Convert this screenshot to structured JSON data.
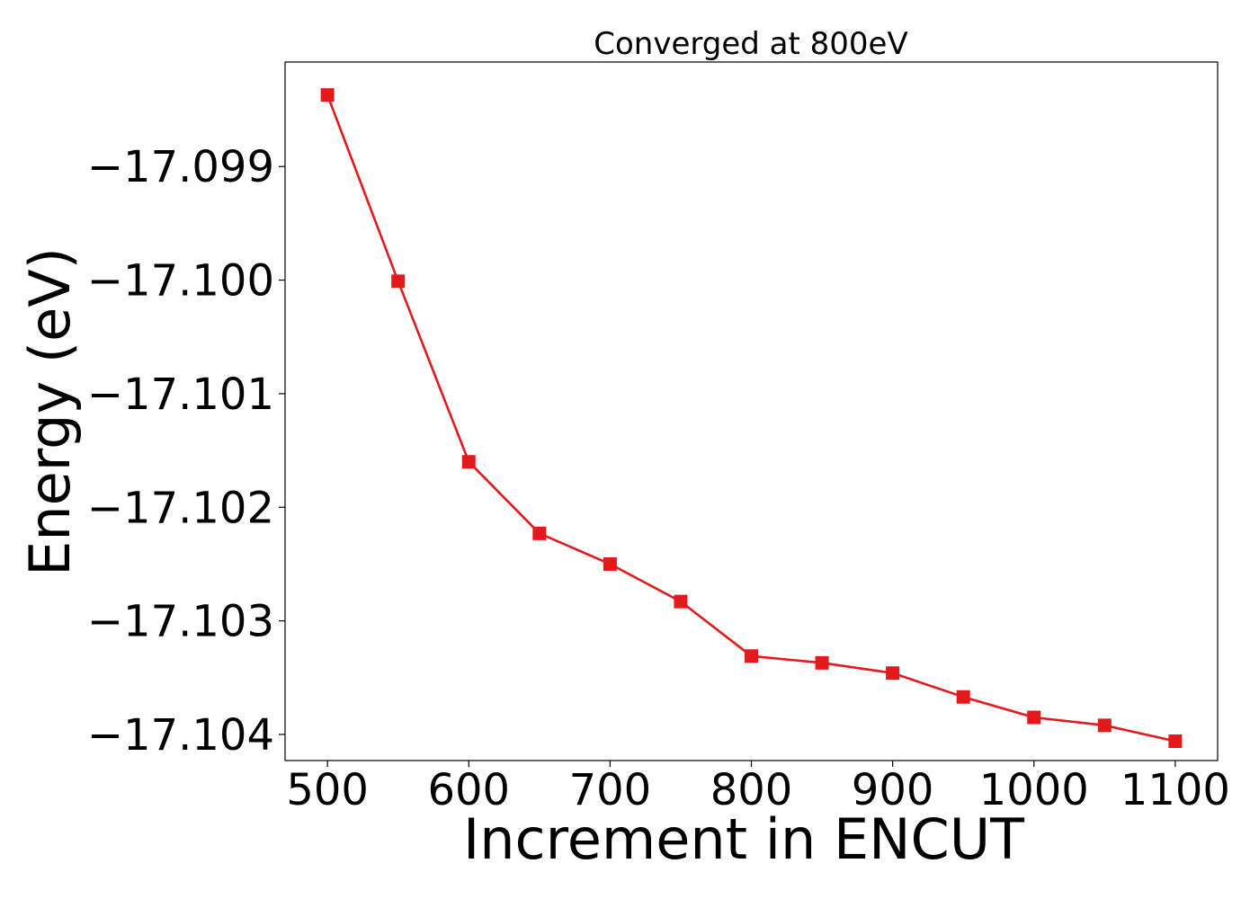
{
  "chart_data": {
    "type": "line",
    "title": "Converged at 800eV",
    "xlabel": "Increment in ENCUT",
    "ylabel": "Energy (eV)",
    "xlim": [
      470,
      1130
    ],
    "ylim": [
      -17.10423,
      -17.09808
    ],
    "x_ticks": [
      500,
      600,
      700,
      800,
      900,
      1000,
      1100
    ],
    "x_tick_labels": [
      "500",
      "600",
      "700",
      "800",
      "900",
      "1000",
      "1100"
    ],
    "y_ticks": [
      -17.099,
      -17.1,
      -17.101,
      -17.102,
      -17.103,
      -17.104
    ],
    "y_tick_labels": [
      "−17.099",
      "−17.100",
      "−17.101",
      "−17.102",
      "−17.103",
      "−17.104"
    ],
    "grid": false,
    "series": [
      {
        "color": "#e31a1c",
        "marker": "square",
        "x": [
          500,
          550,
          600,
          650,
          700,
          750,
          800,
          850,
          900,
          950,
          1000,
          1050,
          1100
        ],
        "y": [
          -17.09837,
          -17.10001,
          -17.1016,
          -17.10223,
          -17.1025,
          -17.10283,
          -17.10331,
          -17.10337,
          -17.10346,
          -17.10367,
          -17.10385,
          -17.10392,
          -17.10406
        ]
      }
    ]
  }
}
